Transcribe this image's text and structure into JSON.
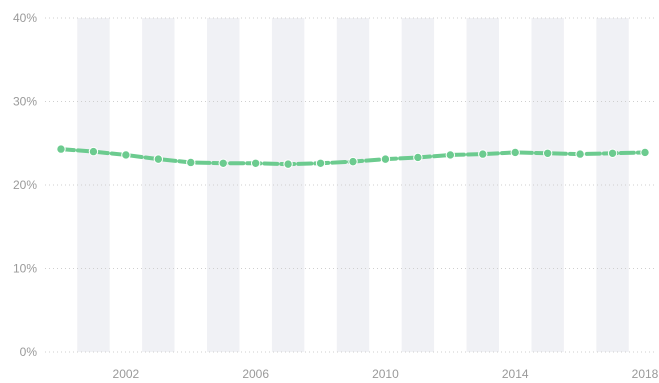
{
  "chart_data": {
    "type": "line",
    "x": [
      2000,
      2001,
      2002,
      2003,
      2004,
      2005,
      2006,
      2007,
      2008,
      2009,
      2010,
      2011,
      2012,
      2013,
      2014,
      2015,
      2016,
      2017,
      2018
    ],
    "series": [
      {
        "values": [
          24.3,
          24.0,
          23.6,
          23.1,
          22.7,
          22.6,
          22.6,
          22.5,
          22.6,
          22.8,
          23.1,
          23.3,
          23.6,
          23.7,
          23.9,
          23.8,
          23.7,
          23.8,
          23.9
        ]
      }
    ],
    "x_ticks": [
      "2002",
      "2006",
      "2010",
      "2014",
      "2018"
    ],
    "y_ticks": [
      "0%",
      "10%",
      "20%",
      "30%",
      "40%"
    ],
    "ylim": [
      0,
      40
    ],
    "xlim": [
      2000,
      2018
    ],
    "grid": true,
    "colors": {
      "series": "#6ccb8f",
      "band": "#f0f1f5",
      "grid": "#cfcfcf",
      "tick": "#9a9a9a"
    }
  }
}
